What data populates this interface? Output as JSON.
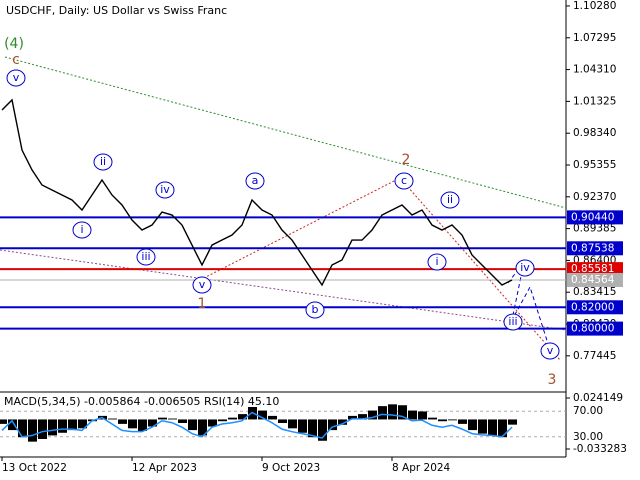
{
  "chart_data": {
    "type": "line",
    "title": "USDCHF, Daily:  US Dollar vs Swiss Franc",
    "categories": [
      "13 Oct 2022",
      null,
      null,
      null,
      null,
      null,
      null,
      null,
      null,
      null,
      null,
      null,
      null,
      "12 Apr 2023",
      null,
      null,
      null,
      null,
      null,
      null,
      null,
      null,
      null,
      null,
      null,
      null,
      "9 Oct 2023",
      null,
      null,
      null,
      null,
      null,
      null,
      null,
      null,
      null,
      null,
      null,
      null,
      "8 Apr 2024",
      null,
      null,
      null,
      null,
      null,
      null,
      null,
      null,
      null,
      null,
      null,
      null
    ],
    "series": [
      {
        "name": "USDCHF",
        "color": "#000000",
        "values": [
          1.0052,
          1.0146,
          0.9676,
          0.9489,
          0.9348,
          0.9301,
          0.9254,
          0.9207,
          0.9113,
          0.9254,
          0.9395,
          0.9254,
          0.916,
          0.9019,
          0.8925,
          0.8972,
          0.9094,
          0.9066,
          0.8972,
          0.8784,
          0.8597,
          0.8784,
          0.8831,
          0.8878,
          0.8972,
          0.9207,
          0.9113,
          0.9066,
          0.8925,
          0.8831,
          0.8691,
          0.855,
          0.8409,
          0.8597,
          0.8644,
          0.8831,
          0.8831,
          0.8925,
          0.9066,
          0.9113,
          0.916,
          0.9066,
          0.9113,
          0.8972,
          0.8925,
          0.8972,
          0.8878,
          0.8691,
          0.8597,
          0.8503,
          0.8409,
          0.8456
        ]
      }
    ],
    "ylim": [
      0.7405,
      1.1084
    ],
    "yticks": [
      {
        "value": 1.1028,
        "label": "1.10280"
      },
      1.07295,
      {
        "value": 1.0431,
        "label": "1.04310"
      },
      1.01325,
      {
        "value": 0.9834,
        "label": "0.98340"
      },
      0.95355,
      {
        "value": 0.9237,
        "label": "0.92370"
      },
      0.89385,
      {
        "value": 0.864,
        "label": "0.86400"
      },
      0.83415,
      {
        "value": 0.8043,
        "label": "0.80430"
      },
      0.77445
    ],
    "levels": [
      {
        "value": {
          "value": 0.9044,
          "label": "0.90440"
        },
        "color": "#0000cd"
      },
      {
        "value": 0.87538,
        "color": "#0000cd"
      },
      {
        "value": 0.85581,
        "color": "#e00000"
      },
      {
        "value": 0.84564,
        "color": "#b0b0b0"
      },
      {
        "value": {
          "value": 0.82,
          "label": "0.82000"
        },
        "color": "#0000cd"
      },
      {
        "value": {
          "value": 0.8,
          "label": "0.80000"
        },
        "color": "#0000cd"
      }
    ],
    "annotations": [
      {
        "text": "(4)",
        "color": "#2e8b2e"
      },
      {
        "text": "c",
        "color": "#a0522d"
      },
      {
        "text": "v",
        "color": "#0000cd",
        "circled": true
      },
      {
        "text": "ii",
        "color": "#0000cd",
        "circled": true
      },
      {
        "text": "i",
        "color": "#0000cd",
        "circled": true
      },
      {
        "text": "iv",
        "color": "#0000cd",
        "circled": true
      },
      {
        "text": "iii",
        "color": "#0000cd",
        "circled": true
      },
      {
        "text": "v",
        "color": "#0000cd",
        "circled": true
      },
      {
        "text": "1",
        "color": "#a0522d"
      },
      {
        "text": "a",
        "color": "#0000cd",
        "circled": true
      },
      {
        "text": "b",
        "color": "#0000cd",
        "circled": true
      },
      {
        "text": "c",
        "color": "#0000cd",
        "circled": true
      },
      {
        "text": "2",
        "color": "#a0522d"
      },
      {
        "text": "ii",
        "color": "#0000cd",
        "circled": true
      },
      {
        "text": "i",
        "color": "#0000cd",
        "circled": true
      },
      {
        "text": "iv",
        "color": "#0000cd",
        "circled": true
      },
      {
        "text": "iii",
        "color": "#0000cd",
        "circled": true
      },
      {
        "text": "v",
        "color": "#0000cd",
        "circled": true
      },
      {
        "text": "3",
        "color": "#a0522d"
      }
    ],
    "indicator": {
      "title": "MACD(5,34,5) -0.005864 -0.006505 RSI(14) 45.10",
      "macd": {
        "color": "#000000",
        "values": [
          -0.005,
          -0.012,
          -0.02,
          -0.025,
          -0.022,
          -0.018,
          -0.015,
          -0.012,
          -0.01,
          -0.002,
          0.004,
          0.001,
          -0.005,
          -0.01,
          -0.013,
          -0.008,
          0.002,
          0.001,
          -0.004,
          -0.012,
          -0.018,
          -0.008,
          -0.002,
          0.002,
          0.006,
          0.014,
          0.01,
          0.004,
          -0.004,
          -0.01,
          -0.015,
          -0.02,
          -0.024,
          -0.012,
          -0.006,
          0.004,
          0.006,
          0.01,
          0.015,
          0.017,
          0.016,
          0.01,
          0.009,
          0.002,
          -0.002,
          -0.001,
          -0.005,
          -0.012,
          -0.016,
          -0.018,
          -0.02,
          -0.005864
        ]
      },
      "rsi": {
        "color": "#1e90ff",
        "axis": "y2",
        "values": [
          40,
          55,
          30,
          32,
          38,
          40,
          42,
          42,
          40,
          55,
          60,
          50,
          40,
          38,
          38,
          45,
          55,
          52,
          45,
          35,
          30,
          45,
          50,
          52,
          55,
          68,
          60,
          52,
          42,
          38,
          35,
          32,
          28,
          45,
          50,
          58,
          58,
          60,
          65,
          64,
          62,
          55,
          56,
          48,
          45,
          48,
          42,
          35,
          33,
          32,
          30,
          45.1
        ]
      },
      "ylim": [
        -0.033283,
        0.024149
      ],
      "yticks": [
        0.024149,
        -0.033283
      ],
      "y2lim": [
        0,
        100
      ],
      "y2ticks": [
        {
          "value": 70,
          "label": "70.00"
        },
        {
          "value": 30,
          "label": "30.00"
        }
      ]
    }
  }
}
